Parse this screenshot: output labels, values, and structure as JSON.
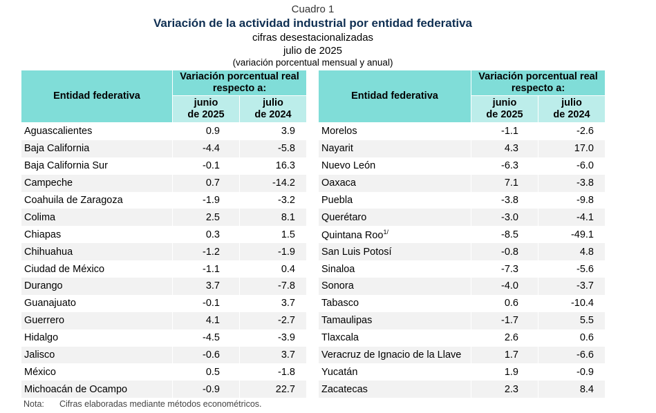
{
  "header": {
    "label": "Cuadro 1",
    "title": "Variación de la actividad industrial por entidad federativa",
    "subtitle": "cifras desestacionalizadas",
    "period": "julio de 2025",
    "unit": "(variación porcentual mensual y anual)"
  },
  "columns": {
    "entity": "Entidad federativa",
    "group": "Variación porcentual real respecto a:",
    "c1a": "junio",
    "c1b": "de 2025",
    "c2a": "julio",
    "c2b": "de 2024"
  },
  "left_rows": [
    {
      "name": "Aguascalientes",
      "jun": "0.9",
      "jul": "3.9"
    },
    {
      "name": "Baja California",
      "jun": "-4.4",
      "jul": "-5.8"
    },
    {
      "name": "Baja California Sur",
      "jun": "-0.1",
      "jul": "16.3"
    },
    {
      "name": "Campeche",
      "jun": "0.7",
      "jul": "-14.2"
    },
    {
      "name": "Coahuila de Zaragoza",
      "jun": "-1.9",
      "jul": "-3.2"
    },
    {
      "name": "Colima",
      "jun": "2.5",
      "jul": "8.1"
    },
    {
      "name": "Chiapas",
      "jun": "0.3",
      "jul": "1.5"
    },
    {
      "name": "Chihuahua",
      "jun": "-1.2",
      "jul": "-1.9"
    },
    {
      "name": "Ciudad de México",
      "jun": "-1.1",
      "jul": "0.4"
    },
    {
      "name": "Durango",
      "jun": "3.7",
      "jul": "-7.8"
    },
    {
      "name": "Guanajuato",
      "jun": "-0.1",
      "jul": "3.7"
    },
    {
      "name": "Guerrero",
      "jun": "4.1",
      "jul": "-2.7"
    },
    {
      "name": "Hidalgo",
      "jun": "-4.5",
      "jul": "-3.9"
    },
    {
      "name": "Jalisco",
      "jun": "-0.6",
      "jul": "3.7"
    },
    {
      "name": "México",
      "jun": "0.5",
      "jul": "-1.8"
    },
    {
      "name": "Michoacán de Ocampo",
      "jun": "-0.9",
      "jul": "22.7"
    }
  ],
  "right_rows": [
    {
      "name": "Morelos",
      "jun": "-1.1",
      "jul": "-2.6"
    },
    {
      "name": "Nayarit",
      "jun": "4.3",
      "jul": "17.0"
    },
    {
      "name": "Nuevo León",
      "jun": "-6.3",
      "jul": "-6.0"
    },
    {
      "name": "Oaxaca",
      "jun": "7.1",
      "jul": "-3.8"
    },
    {
      "name": "Puebla",
      "jun": "-3.8",
      "jul": "-9.8"
    },
    {
      "name": "Querétaro",
      "jun": "-3.0",
      "jul": "-4.1"
    },
    {
      "name": "Quintana Roo",
      "sup": "1/",
      "jun": "-8.5",
      "jul": "-49.1"
    },
    {
      "name": "San Luis Potosí",
      "jun": "-0.8",
      "jul": "4.8"
    },
    {
      "name": "Sinaloa",
      "jun": "-7.3",
      "jul": "-5.6"
    },
    {
      "name": "Sonora",
      "jun": "-4.0",
      "jul": "-3.7"
    },
    {
      "name": "Tabasco",
      "jun": "0.6",
      "jul": "-10.4"
    },
    {
      "name": "Tamaulipas",
      "jun": "-1.7",
      "jul": "5.5"
    },
    {
      "name": "Tlaxcala",
      "jun": "2.6",
      "jul": "0.6"
    },
    {
      "name": "Veracruz de Ignacio de la Llave",
      "jun": "1.7",
      "jul": "-6.6"
    },
    {
      "name": "Yucatán",
      "jun": "1.9",
      "jul": "-0.9"
    },
    {
      "name": "Zacatecas",
      "jun": "2.3",
      "jul": "8.4"
    }
  ],
  "note": {
    "label": "Nota:",
    "text": "Cifras elaboradas mediante métodos econométricos."
  }
}
